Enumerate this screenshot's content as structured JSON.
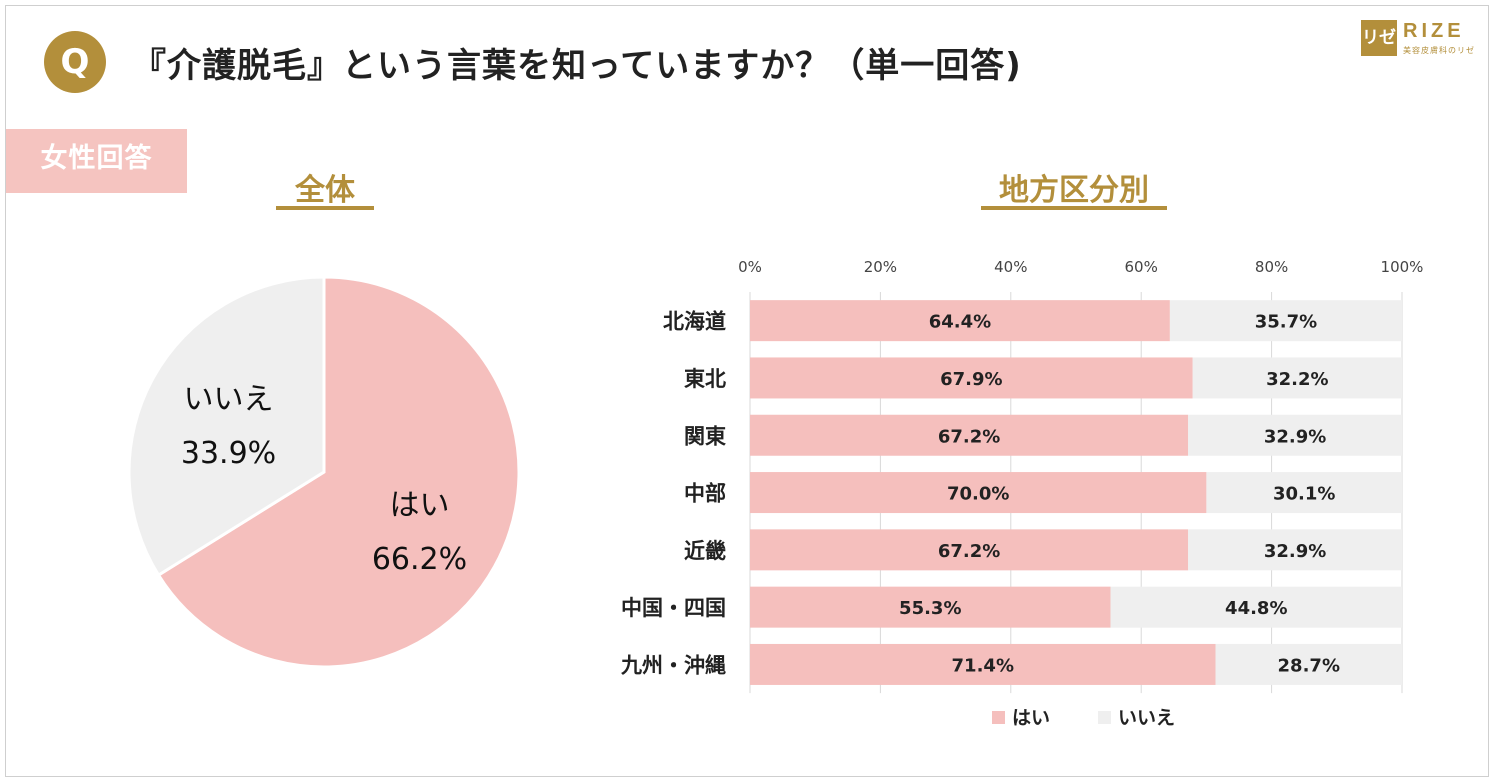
{
  "header": {
    "q_badge": "Q",
    "title": "『介護脱毛』という言葉を知っていますか？（単一回答)",
    "tag": "女性回答"
  },
  "logo": {
    "mark": "リゼ",
    "word": "RIZE",
    "sub": "美容皮膚科のリゼ"
  },
  "sections": {
    "overall": "全体",
    "regional": "地方区分別"
  },
  "colors": {
    "yes": "#f5bfbd",
    "no": "#efefef",
    "accent": "#b38f3b"
  },
  "chart_data": [
    {
      "type": "pie",
      "title": "全体",
      "slices": [
        {
          "label": "はい",
          "value": 66.2,
          "value_label": "66.2%"
        },
        {
          "label": "いいえ",
          "value": 33.9,
          "value_label": "33.9%"
        }
      ]
    },
    {
      "type": "bar",
      "orientation": "horizontal",
      "stacked": true,
      "title": "地方区分別",
      "categories": [
        "北海道",
        "東北",
        "関東",
        "中部",
        "近畿",
        "中国・四国",
        "九州・沖縄"
      ],
      "series": [
        {
          "name": "はい",
          "values": [
            64.4,
            67.9,
            67.2,
            70.0,
            67.2,
            55.3,
            71.4
          ],
          "labels": [
            "64.4%",
            "67.9%",
            "67.2%",
            "70.0%",
            "67.2%",
            "55.3%",
            "71.4%"
          ]
        },
        {
          "name": "いいえ",
          "values": [
            35.7,
            32.2,
            32.9,
            30.1,
            32.9,
            44.8,
            28.7
          ],
          "labels": [
            "35.7%",
            "32.2%",
            "32.9%",
            "30.1%",
            "32.9%",
            "44.8%",
            "28.7%"
          ]
        }
      ],
      "xlim": [
        0,
        100
      ],
      "ticks": [
        "0%",
        "20%",
        "40%",
        "60%",
        "80%",
        "100%"
      ],
      "legend": "bottom"
    }
  ]
}
